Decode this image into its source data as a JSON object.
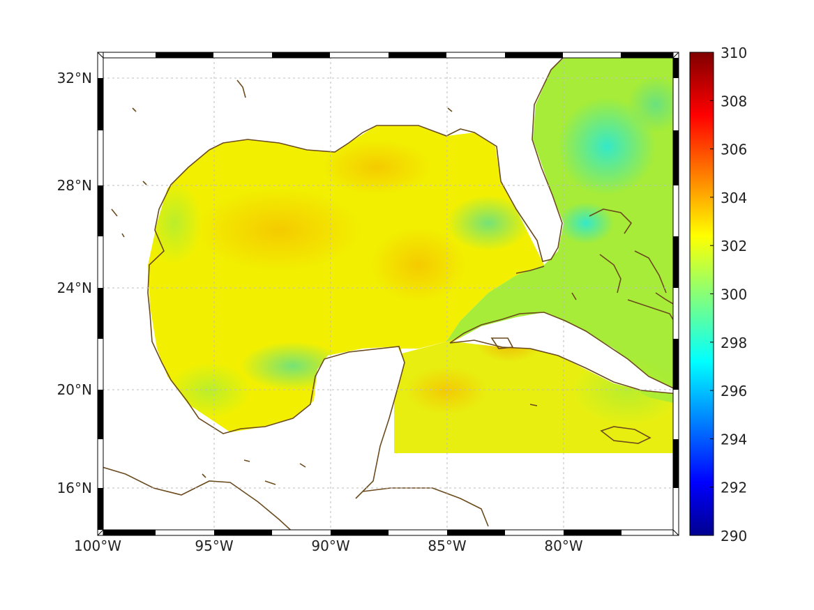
{
  "map": {
    "lon_range_deg_w": [
      100,
      75
    ],
    "lat_range_deg_n": [
      14.2,
      33.0
    ],
    "lon_ticks": [
      {
        "value": -100,
        "label": "100°W"
      },
      {
        "value": -95,
        "label": "95°W"
      },
      {
        "value": -90,
        "label": "90°W"
      },
      {
        "value": -85,
        "label": "85°W"
      },
      {
        "value": -80,
        "label": "80°W"
      }
    ],
    "lat_ticks": [
      {
        "value": 32,
        "label": "32°N"
      },
      {
        "value": 28,
        "label": "28°N"
      },
      {
        "value": 24,
        "label": "24°N"
      },
      {
        "value": 20,
        "label": "20°N"
      },
      {
        "value": 16,
        "label": "16°N"
      }
    ],
    "grid": true,
    "coastline_color": "#6b4a1e",
    "colors": {
      "land": "#ffffff",
      "water_base": "#f2f000"
    }
  },
  "colorbar": {
    "min": 290,
    "max": 310,
    "colormap": "jet",
    "ticks": [
      "310",
      "308",
      "306",
      "304",
      "302",
      "300",
      "298",
      "296",
      "294",
      "292",
      "290"
    ]
  }
}
